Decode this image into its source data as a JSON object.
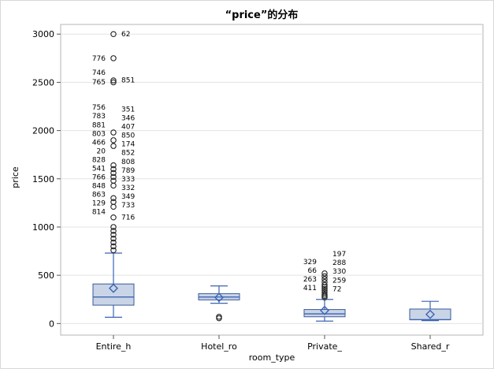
{
  "chart_data": {
    "type": "box",
    "title": "“price”的分布",
    "xlabel": "room_type",
    "ylabel": "price",
    "ylim": [
      -120,
      3100
    ],
    "yticks": [
      0,
      500,
      1000,
      1500,
      2000,
      2500,
      3000
    ],
    "grid": "horizontal",
    "colors": {
      "box_fill": "#c9d4e6",
      "box_stroke": "#3a5a98",
      "whisker": "#3b64b4",
      "median": "#3b64b4",
      "mean_marker": "#3b64b4",
      "outlier": "#222222",
      "grid": "#e3e3e3"
    },
    "categories": [
      "Entire_h",
      "Hotel_ro",
      "Private_",
      "Shared_r"
    ],
    "boxes": [
      {
        "category": "Entire_h",
        "whisker_low": 65,
        "q1": 190,
        "median": 275,
        "q3": 410,
        "whisker_high": 730,
        "mean": 365,
        "outliers": [
          3000,
          2750,
          2520,
          2500,
          1980,
          1900,
          1840,
          1640,
          1600,
          1560,
          1520,
          1480,
          1430,
          1300,
          1260,
          1210,
          1100,
          1000,
          960,
          920,
          880,
          840,
          800,
          760
        ],
        "labels_left": [
          {
            "text": "776",
            "y": 2750
          },
          {
            "text": "746",
            "y": 2600
          },
          {
            "text": "765",
            "y": 2505
          },
          {
            "text": "756",
            "y": 2240
          },
          {
            "text": "783",
            "y": 2150
          },
          {
            "text": "881",
            "y": 2060
          },
          {
            "text": "803",
            "y": 1970
          },
          {
            "text": "466",
            "y": 1880
          },
          {
            "text": "20",
            "y": 1790
          },
          {
            "text": "828",
            "y": 1700
          },
          {
            "text": "541",
            "y": 1610
          },
          {
            "text": "766",
            "y": 1520
          },
          {
            "text": "848",
            "y": 1430
          },
          {
            "text": "863",
            "y": 1340
          },
          {
            "text": "129",
            "y": 1250
          },
          {
            "text": "814",
            "y": 1160
          }
        ],
        "labels_right": [
          {
            "text": "62",
            "y": 3000
          },
          {
            "text": "851",
            "y": 2525
          },
          {
            "text": "351",
            "y": 2220
          },
          {
            "text": "346",
            "y": 2130
          },
          {
            "text": "407",
            "y": 2040
          },
          {
            "text": "850",
            "y": 1950
          },
          {
            "text": "174",
            "y": 1860
          },
          {
            "text": "852",
            "y": 1770
          },
          {
            "text": "808",
            "y": 1680
          },
          {
            "text": "789",
            "y": 1590
          },
          {
            "text": "333",
            "y": 1500
          },
          {
            "text": "332",
            "y": 1410
          },
          {
            "text": "349",
            "y": 1320
          },
          {
            "text": "733",
            "y": 1230
          },
          {
            "text": "716",
            "y": 1100
          }
        ]
      },
      {
        "category": "Hotel_ro",
        "whisker_low": 210,
        "q1": 245,
        "median": 275,
        "q3": 310,
        "whisker_high": 390,
        "mean": 270,
        "outliers": [
          70,
          55
        ],
        "labels_left": [],
        "labels_right": []
      },
      {
        "category": "Private_",
        "whisker_low": 25,
        "q1": 70,
        "median": 100,
        "q3": 145,
        "whisker_high": 250,
        "mean": 135,
        "outliers": [
          520,
          490,
          460,
          430,
          400,
          380,
          360,
          340,
          320,
          300,
          285,
          270
        ],
        "labels_left": [
          {
            "text": "329",
            "y": 640
          },
          {
            "text": "66",
            "y": 550
          },
          {
            "text": "263",
            "y": 460
          },
          {
            "text": "411",
            "y": 370
          }
        ],
        "labels_right": [
          {
            "text": "197",
            "y": 720
          },
          {
            "text": "288",
            "y": 630
          },
          {
            "text": "330",
            "y": 540
          },
          {
            "text": "259",
            "y": 450
          },
          {
            "text": "72",
            "y": 360
          }
        ]
      },
      {
        "category": "Shared_r",
        "whisker_low": 30,
        "q1": 40,
        "median": 40,
        "q3": 150,
        "whisker_high": 230,
        "mean": 95,
        "outliers": [],
        "labels_left": [],
        "labels_right": []
      }
    ]
  }
}
